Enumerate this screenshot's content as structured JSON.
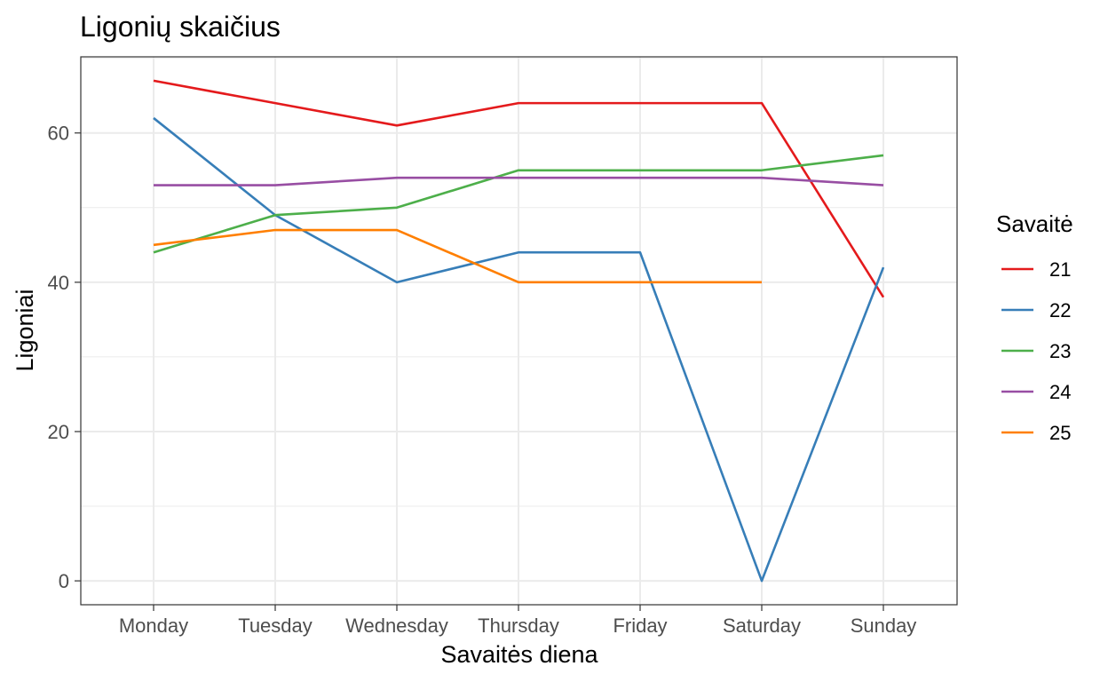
{
  "chart_data": {
    "type": "line",
    "title": "Ligonių skaičius",
    "xlabel": "Savaitės diena",
    "ylabel": "Ligoniai",
    "categories": [
      "Monday",
      "Tuesday",
      "Wednesday",
      "Thursday",
      "Friday",
      "Saturday",
      "Sunday"
    ],
    "yticks": [
      "0",
      "20",
      "40",
      "60"
    ],
    "ylim": [
      -3.2,
      70.2
    ],
    "grid": true,
    "legend": {
      "title": "Savaitė",
      "position": "right"
    },
    "series": [
      {
        "name": "21",
        "color": "#e41a1c",
        "values": [
          67,
          64,
          61,
          64,
          64,
          64,
          38
        ]
      },
      {
        "name": "22",
        "color": "#377eb8",
        "values": [
          62,
          49,
          40,
          44,
          44,
          0,
          42
        ]
      },
      {
        "name": "23",
        "color": "#4daf4a",
        "values": [
          44,
          49,
          50,
          55,
          55,
          55,
          57
        ]
      },
      {
        "name": "24",
        "color": "#984ea3",
        "values": [
          53,
          53,
          54,
          54,
          54,
          54,
          53
        ]
      },
      {
        "name": "25",
        "color": "#ff7f00",
        "values": [
          45,
          47,
          47,
          40,
          40,
          40,
          null
        ]
      }
    ]
  }
}
